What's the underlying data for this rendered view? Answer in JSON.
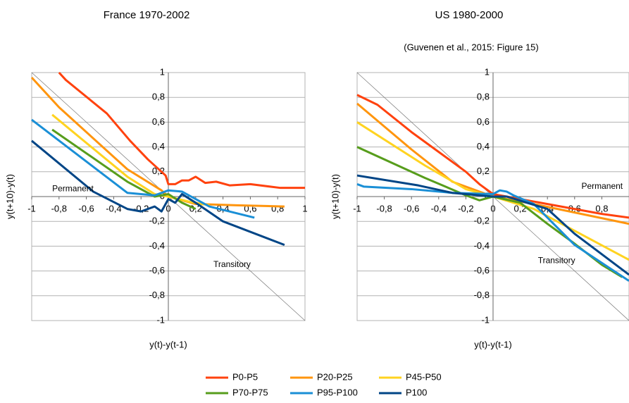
{
  "chart_data": [
    {
      "type": "line",
      "title": "France 1970-2002",
      "x_label": "y(t)-y(t-1)",
      "y_label": "y(t+10)-y(t)",
      "annotations": [
        "Permanent",
        "Transitory"
      ],
      "xlim": [
        -1,
        1
      ],
      "ylim": [
        -1,
        1
      ],
      "xticks": [
        -1,
        {
          "value": -0.8,
          "label": "-0,8"
        },
        {
          "value": -0.6,
          "label": "-0,6"
        },
        {
          "value": -0.4,
          "label": "-0,4"
        },
        {
          "value": -0.2,
          "label": "-0,2"
        },
        0,
        {
          "value": 0.2,
          "label": "0,2"
        },
        {
          "value": 0.4,
          "label": "0,4"
        },
        {
          "value": 0.6,
          "label": "0,6"
        },
        {
          "value": 0.8,
          "label": "0,8"
        },
        1
      ],
      "yticks": [
        -1,
        {
          "value": -0.8,
          "label": "-0,8"
        },
        {
          "value": -0.6,
          "label": "-0,6"
        },
        {
          "value": -0.4,
          "label": "-0,4"
        },
        {
          "value": -0.2,
          "label": "-0,2"
        },
        0,
        {
          "value": 0.2,
          "label": "0,2"
        },
        {
          "value": 0.4,
          "label": "0,4"
        },
        {
          "value": 0.6,
          "label": "0,6"
        },
        {
          "value": 0.8,
          "label": "0,8"
        },
        1
      ],
      "grid": true,
      "series": [
        {
          "name": "P0-P5",
          "color": "#ff420e",
          "x": [
            -0.8,
            -0.75,
            -0.45,
            -0.28,
            -0.15,
            -0.05,
            -0.02,
            0,
            0.05,
            0.1,
            0.15,
            0.2,
            0.27,
            0.35,
            0.45,
            0.6,
            0.82,
            1
          ],
          "values": [
            1,
            0.94,
            0.67,
            0.45,
            0.3,
            0.2,
            0.17,
            0.1,
            0.1,
            0.13,
            0.13,
            0.16,
            0.11,
            0.12,
            0.09,
            0.1,
            0.07,
            0.07
          ]
        },
        {
          "name": "P20-P25",
          "color": "#ff950e",
          "x": [
            -1,
            -0.8,
            -0.3,
            -0.05,
            0,
            0.2,
            0.5,
            0.85
          ],
          "values": [
            0.96,
            0.72,
            0.22,
            0.05,
            0,
            -0.06,
            -0.07,
            -0.08
          ]
        },
        {
          "name": "P45-P50",
          "color": "#ffd320",
          "x": [
            -0.85,
            -0.3,
            -0.1,
            0,
            0.15,
            0.3
          ],
          "values": [
            0.66,
            0.16,
            0.02,
            0,
            -0.04,
            -0.07
          ]
        },
        {
          "name": "P70-P75",
          "color": "#579d1c",
          "x": [
            -0.85,
            -0.3,
            -0.1,
            0,
            0.1,
            0.2
          ],
          "values": [
            0.54,
            0.12,
            0,
            0.02,
            -0.05,
            -0.1
          ]
        },
        {
          "name": "P95-P100",
          "color": "#1a8fd6",
          "x": [
            -1,
            -0.3,
            -0.1,
            0,
            0.1,
            0.2,
            0.3,
            0.63
          ],
          "values": [
            0.62,
            0.03,
            0.01,
            0.05,
            0.04,
            -0.02,
            -0.08,
            -0.17
          ]
        },
        {
          "name": "P100",
          "color": "#004586",
          "x": [
            -1,
            -0.55,
            -0.3,
            -0.2,
            -0.1,
            -0.05,
            0,
            0.05,
            0.1,
            0.2,
            0.4,
            0.85
          ],
          "values": [
            0.45,
            0.04,
            -0.1,
            -0.12,
            -0.08,
            -0.12,
            -0.02,
            -0.05,
            0.02,
            -0.05,
            -0.2,
            -0.39
          ]
        }
      ]
    },
    {
      "type": "line",
      "title": "US 1980-2000",
      "subtitle": "(Guvenen et al., 2015: Figure 15)",
      "x_label": "y(t)-y(t-1)",
      "y_label": "y(t+10)-y(t)",
      "annotations": [
        "Permanent",
        "Transitory"
      ],
      "xlim": [
        -1,
        1
      ],
      "ylim": [
        -1,
        1
      ],
      "xticks": [
        -1,
        {
          "value": -0.8,
          "label": "-0,8"
        },
        {
          "value": -0.6,
          "label": "-0,6"
        },
        {
          "value": -0.4,
          "label": "-0,4"
        },
        {
          "value": -0.2,
          "label": "-0,2"
        },
        0,
        {
          "value": 0.2,
          "label": "0,2"
        },
        {
          "value": 0.4,
          "label": "0,4"
        },
        {
          "value": 0.6,
          "label": "0,6"
        },
        {
          "value": 0.8,
          "label": "0,8"
        }
      ],
      "yticks": [
        -1,
        {
          "value": -0.8,
          "label": "-0,8"
        },
        {
          "value": -0.6,
          "label": "-0,6"
        },
        {
          "value": -0.4,
          "label": "-0,4"
        },
        {
          "value": -0.2,
          "label": "-0,2"
        },
        0,
        {
          "value": 0.2,
          "label": "0,2"
        },
        {
          "value": 0.4,
          "label": "0,4"
        },
        {
          "value": 0.6,
          "label": "0,6"
        },
        {
          "value": 0.8,
          "label": "0,8"
        },
        1
      ],
      "grid": true,
      "series": [
        {
          "name": "P0-P5",
          "color": "#ff420e",
          "x": [
            -1,
            -0.85,
            -0.6,
            -0.4,
            -0.2,
            -0.1,
            0,
            0.1,
            0.3,
            0.6,
            0.8,
            1
          ],
          "values": [
            0.82,
            0.74,
            0.52,
            0.36,
            0.2,
            0.1,
            0.02,
            0,
            -0.04,
            -0.1,
            -0.14,
            -0.17
          ]
        },
        {
          "name": "P20-P25",
          "color": "#ff950e",
          "x": [
            -1,
            -0.6,
            -0.3,
            0,
            0.3,
            1
          ],
          "values": [
            0.75,
            0.38,
            0.12,
            0,
            -0.06,
            -0.22
          ]
        },
        {
          "name": "P45-P50",
          "color": "#ffd320",
          "x": [
            -1,
            -0.5,
            -0.2,
            0,
            0.3,
            1
          ],
          "values": [
            0.6,
            0.25,
            0.06,
            0,
            -0.1,
            -0.51
          ]
        },
        {
          "name": "P70-P75",
          "color": "#579d1c",
          "x": [
            -1,
            -0.5,
            -0.2,
            -0.1,
            0,
            0.2,
            0.4,
            0.6,
            0.8,
            0.95
          ],
          "values": [
            0.4,
            0.15,
            0.01,
            -0.03,
            0,
            -0.05,
            -0.22,
            -0.38,
            -0.55,
            -0.65
          ]
        },
        {
          "name": "P95-P100",
          "color": "#1a8fd6",
          "x": [
            -1,
            -0.95,
            -0.6,
            -0.3,
            0,
            0.05,
            0.1,
            0.15,
            0.3,
            0.6,
            1
          ],
          "values": [
            0.1,
            0.08,
            0.06,
            0.03,
            0.02,
            0.05,
            0.04,
            0.01,
            -0.06,
            -0.39,
            -0.68
          ]
        },
        {
          "name": "P100",
          "color": "#004586",
          "x": [
            -1,
            -0.55,
            -0.3,
            0,
            0.1,
            0.4,
            0.6,
            1
          ],
          "values": [
            0.17,
            0.09,
            0.03,
            0,
            0,
            -0.1,
            -0.3,
            -0.63
          ]
        }
      ]
    }
  ]
}
